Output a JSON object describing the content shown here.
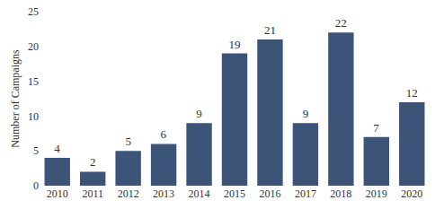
{
  "chart_data": {
    "type": "bar",
    "y_label": "Number of Campaigns",
    "categories": [
      "2010",
      "2011",
      "2012",
      "2013",
      "2014",
      "2015",
      "2016",
      "2017",
      "2018",
      "2019",
      "2020"
    ],
    "values": [
      4,
      2,
      5,
      6,
      9,
      19,
      21,
      9,
      22,
      7,
      12
    ],
    "color": "#3c5478",
    "ylim": [
      0,
      25
    ],
    "yticks": [
      0,
      5,
      10,
      15,
      20,
      25
    ],
    "grid": false,
    "data_labels": true
  }
}
